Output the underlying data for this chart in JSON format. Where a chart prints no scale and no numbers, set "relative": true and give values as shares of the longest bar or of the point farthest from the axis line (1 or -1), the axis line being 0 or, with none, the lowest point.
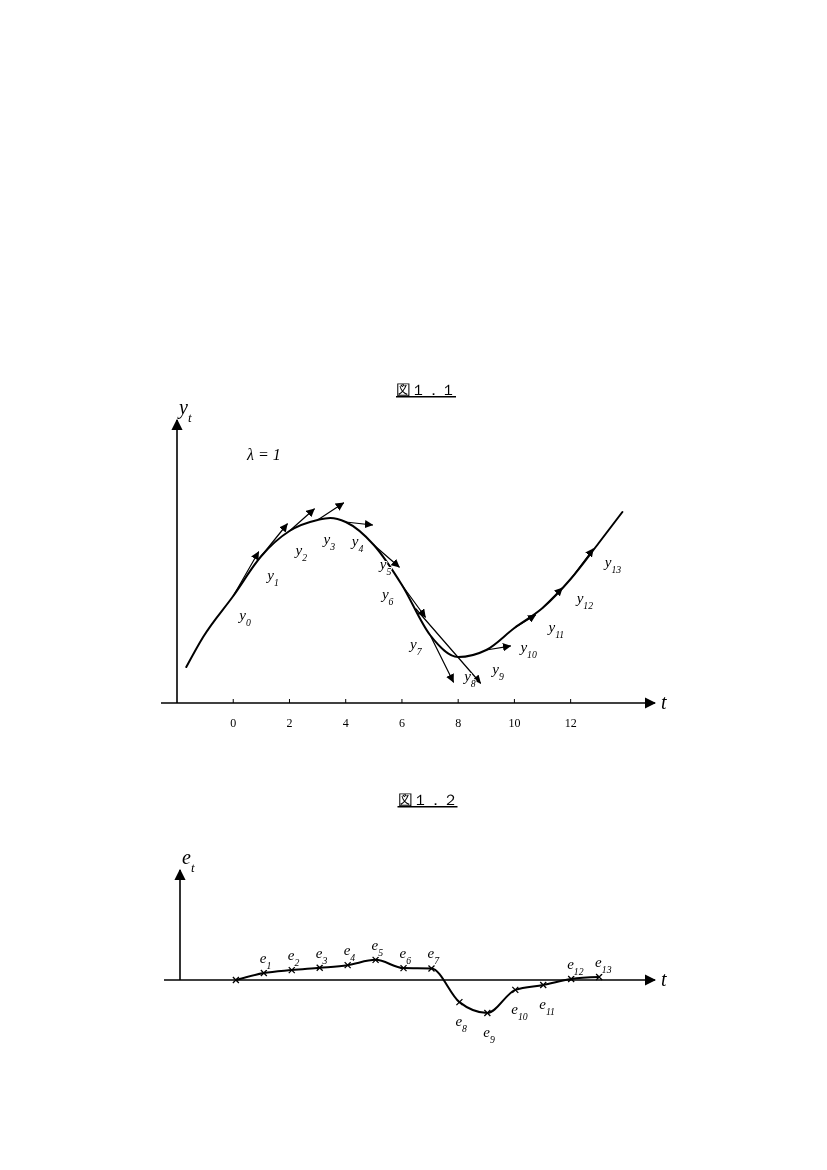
{
  "chart_data": [
    {
      "type": "line",
      "title": "図１．１",
      "ylabel": "y$_{t}$",
      "xlabel": "t",
      "relative": true,
      "xlim": [
        -2,
        15
      ],
      "xticks": [
        0,
        2,
        4,
        6,
        8,
        10,
        12
      ],
      "tick_labels": "x",
      "marker": "none",
      "annotations": [
        "λ = 1",
        {
          "text": "y$_{0}$",
          "x": 0,
          "y": 0.535
        },
        {
          "text": "y$_{1}$",
          "x": 1,
          "y": 0.735
        },
        {
          "text": "y$_{2}$",
          "x": 2,
          "y": 0.86
        },
        {
          "text": "y$_{3}$",
          "x": 3,
          "y": 0.915
        },
        {
          "text": "y$_{4}$",
          "x": 4,
          "y": 0.905
        },
        {
          "text": "y$_{5}$",
          "x": 5,
          "y": 0.79
        },
        {
          "text": "y$_{6}$",
          "x": 6,
          "y": 0.59
        },
        {
          "text": "y$_{7}$",
          "x": 7,
          "y": 0.34
        },
        {
          "text": "y$_{8}$",
          "x": 8,
          "y": 0.23
        },
        {
          "text": "y$_{9}$",
          "x": 9,
          "y": 0.265
        },
        {
          "text": "y$_{10}$",
          "x": 10,
          "y": 0.375
        },
        {
          "text": "y$_{11}$",
          "x": 11,
          "y": 0.475
        },
        {
          "text": "y$_{12}$",
          "x": 12,
          "y": 0.62
        },
        {
          "text": "y$_{13}$",
          "x": 13,
          "y": 0.8
        }
      ],
      "x": [
        -1.67,
        -1.07,
        0,
        1,
        2,
        3,
        3.45,
        4,
        5,
        6,
        7,
        8,
        9,
        10,
        11,
        12,
        13,
        13.84
      ],
      "series": [
        {
          "color": "#000000",
          "values": [
            0.18,
            0.33,
            0.535,
            0.735,
            0.86,
            0.915,
            0.925,
            0.905,
            0.79,
            0.59,
            0.34,
            0.23,
            0.265,
            0.375,
            0.475,
            0.62,
            0.8,
            0.955
          ]
        },
        {
          "color": "#000000",
          "x": [
            0,
            0.9
          ],
          "values": [
            0.535,
            0.755
          ]
        },
        {
          "color": "#000000",
          "x": [
            1,
            1.92
          ],
          "values": [
            0.735,
            0.895
          ]
        },
        {
          "color": "#000000",
          "x": [
            2,
            2.88
          ],
          "values": [
            0.86,
            0.97
          ]
        },
        {
          "color": "#000000",
          "x": [
            3,
            3.92
          ],
          "values": [
            0.915,
            1
          ]
        },
        {
          "color": "#000000",
          "x": [
            4,
            4.95
          ],
          "values": [
            0.905,
            0.89
          ]
        },
        {
          "color": "#000000",
          "x": [
            5,
            5.9
          ],
          "values": [
            0.79,
            0.68
          ]
        },
        {
          "color": "#000000",
          "x": [
            6,
            6.83
          ],
          "values": [
            0.59,
            0.43
          ]
        },
        {
          "color": "#000000",
          "x": [
            7,
            7.83
          ],
          "values": [
            0.34,
            0.105
          ]
        },
        {
          "color": "#000000",
          "x": [
            6.5,
            8.79
          ],
          "values": [
            0.47,
            0.1
          ]
        },
        {
          "color": "#000000",
          "x": [
            9,
            9.86
          ],
          "values": [
            0.265,
            0.285
          ]
        },
        {
          "color": "#000000",
          "x": [
            10,
            10.75
          ],
          "values": [
            0.375,
            0.44
          ]
        },
        {
          "color": "#000000",
          "x": [
            11,
            11.7
          ],
          "values": [
            0.475,
            0.575
          ]
        },
        {
          "color": "#000000",
          "x": [
            12,
            12.8
          ],
          "values": [
            0.62,
            0.77
          ]
        }
      ]
    },
    {
      "type": "line",
      "title": "図１．２",
      "ylabel": "e$_{t}$",
      "xlabel": "t",
      "relative": true,
      "tick_labels": false,
      "marker": "cross",
      "categories": [
        null,
        null,
        null,
        null,
        null,
        null,
        null,
        null,
        null,
        null,
        null,
        null,
        null,
        null
      ],
      "annotations": [
        {
          "text": "e$_{1}$",
          "y": 0.21
        },
        {
          "text": "e$_{2}$",
          "y": 0.3
        },
        {
          "text": "e$_{3}$",
          "y": 0.37
        },
        {
          "text": "e$_{4}$",
          "y": 0.45
        },
        {
          "text": "e$_{5}$",
          "y": 0.61
        },
        {
          "text": "e$_{6}$",
          "y": 0.36
        },
        {
          "text": "e$_{7}$",
          "y": 0.35
        },
        {
          "text": "e$_{8}$",
          "y": -0.67
        },
        {
          "text": "e$_{9}$",
          "y": -1
        },
        {
          "text": "e$_{10}$",
          "y": -0.3
        },
        {
          "text": "e$_{11}$",
          "y": -0.15
        },
        {
          "text": "e$_{12}$",
          "y": 0.03
        },
        {
          "text": "e$_{13}$",
          "y": 0.09
        }
      ],
      "series": [
        {
          "color": "#000000",
          "values": [
            0,
            0.21,
            0.3,
            0.37,
            0.45,
            0.61,
            0.36,
            0.35,
            -0.67,
            -1,
            -0.3,
            -0.15,
            0.03,
            0.09
          ]
        }
      ]
    }
  ]
}
